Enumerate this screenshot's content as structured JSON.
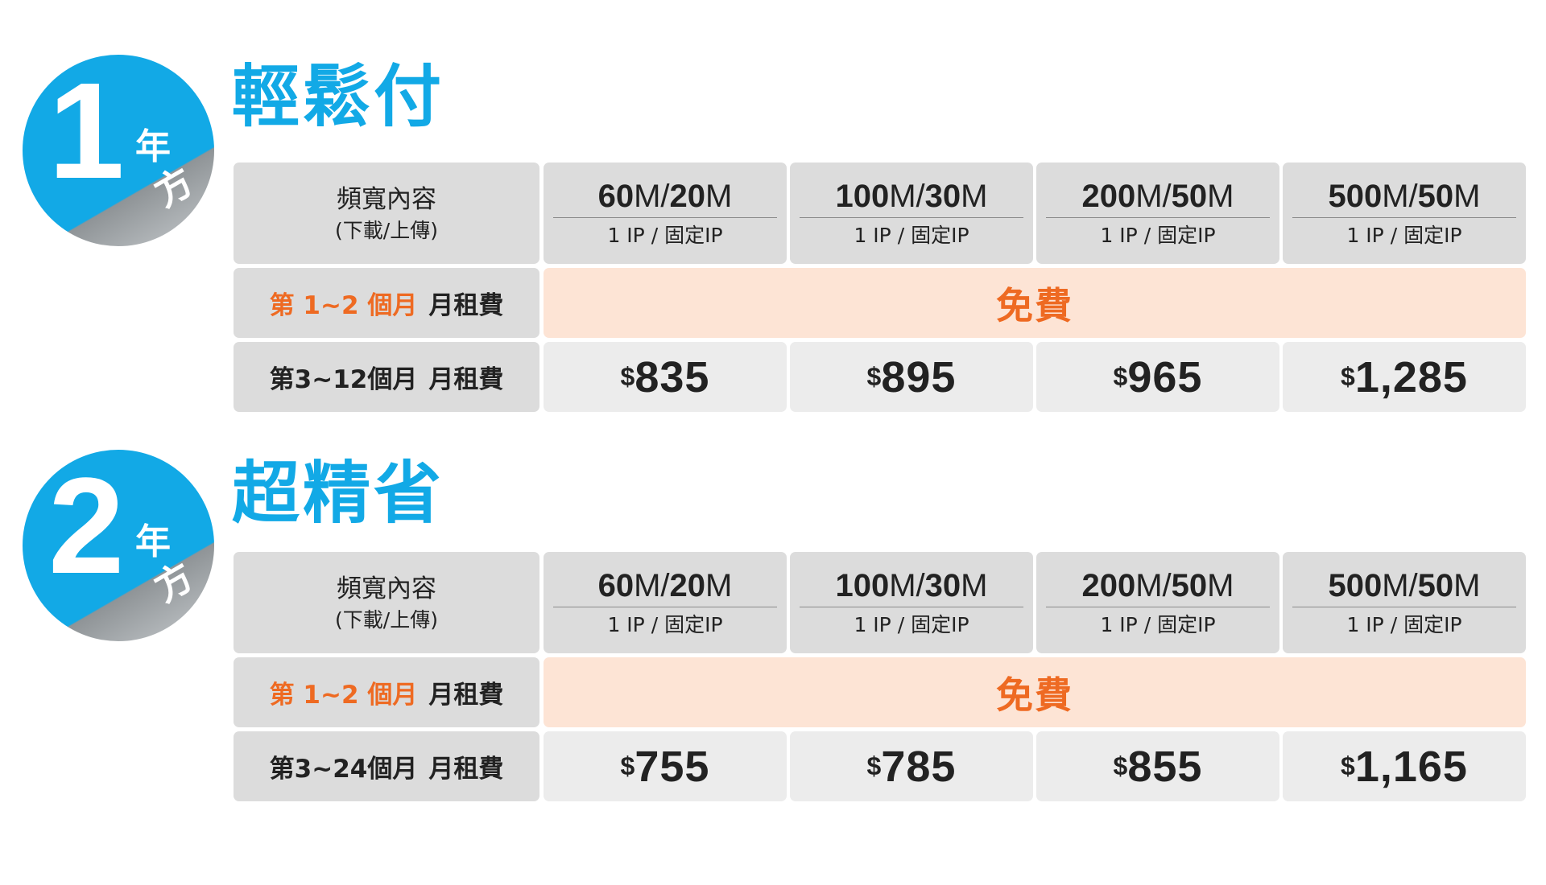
{
  "plans": [
    {
      "badge_number": "1",
      "badge_year": "年",
      "badge_kind": "方案",
      "title": "輕鬆付",
      "header_label": "頻寬內容",
      "header_sub": "(下載/上傳)",
      "tiers": [
        {
          "speed_main": "60",
          "speed_mid": "M/",
          "speed_num2": "20",
          "speed_end": "M",
          "ip": "1 IP / 固定IP"
        },
        {
          "speed_main": "100",
          "speed_mid": "M/",
          "speed_num2": "30",
          "speed_end": "M",
          "ip": "1 IP / 固定IP"
        },
        {
          "speed_main": "200",
          "speed_mid": "M/",
          "speed_num2": "50",
          "speed_end": "M",
          "ip": "1 IP / 固定IP"
        },
        {
          "speed_main": "500",
          "speed_mid": "M/",
          "speed_num2": "50",
          "speed_end": "M",
          "ip": "1 IP / 固定IP"
        }
      ],
      "promo_period": "第 1~2 個月",
      "promo_fee_label": "月租費",
      "promo_value": "免費",
      "regular_period": "第3~12個月",
      "regular_fee_label": "月租費",
      "currency": "$",
      "prices": [
        "835",
        "895",
        "965",
        "1,285"
      ]
    },
    {
      "badge_number": "2",
      "badge_year": "年",
      "badge_kind": "方案",
      "title": "超精省",
      "header_label": "頻寬內容",
      "header_sub": "(下載/上傳)",
      "tiers": [
        {
          "speed_main": "60",
          "speed_mid": "M/",
          "speed_num2": "20",
          "speed_end": "M",
          "ip": "1 IP / 固定IP"
        },
        {
          "speed_main": "100",
          "speed_mid": "M/",
          "speed_num2": "30",
          "speed_end": "M",
          "ip": "1 IP / 固定IP"
        },
        {
          "speed_main": "200",
          "speed_mid": "M/",
          "speed_num2": "50",
          "speed_end": "M",
          "ip": "1 IP / 固定IP"
        },
        {
          "speed_main": "500",
          "speed_mid": "M/",
          "speed_num2": "50",
          "speed_end": "M",
          "ip": "1 IP / 固定IP"
        }
      ],
      "promo_period": "第 1~2 個月",
      "promo_fee_label": "月租費",
      "promo_value": "免費",
      "regular_period": "第3~24個月",
      "regular_fee_label": "月租費",
      "currency": "$",
      "prices": [
        "755",
        "785",
        "855",
        "1,165"
      ]
    }
  ],
  "colors": {
    "brand_blue": "#12a9e6",
    "accent_orange": "#ee6a22",
    "promo_background": "#fde4d5",
    "header_gray": "#dcdcdc",
    "price_gray": "#ececec"
  }
}
